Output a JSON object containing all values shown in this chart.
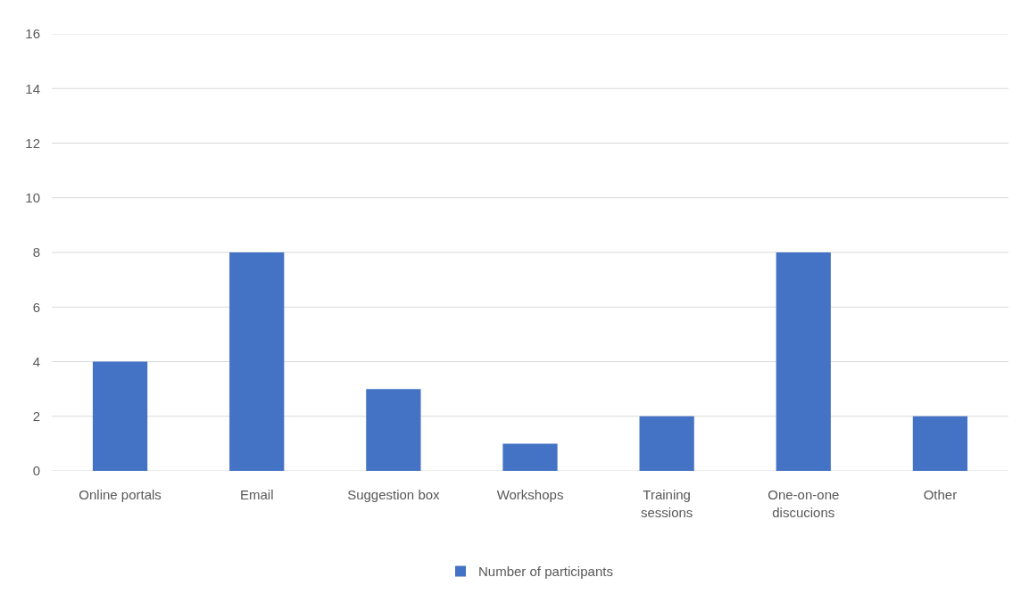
{
  "chart_data": {
    "type": "bar",
    "categories": [
      "Online portals",
      "Email",
      "Suggestion box",
      "Workshops",
      "Training sessions",
      "One-on-one discucions",
      "Other"
    ],
    "series": [
      {
        "name": "Number of participants",
        "color": "#4472c4",
        "values": [
          4,
          8,
          3,
          1,
          2,
          8,
          2
        ]
      }
    ],
    "ylim": [
      0,
      16
    ],
    "yticks": [
      0,
      2,
      4,
      6,
      8,
      10,
      12,
      14,
      16
    ],
    "grid": "y",
    "legend": "bottom"
  }
}
